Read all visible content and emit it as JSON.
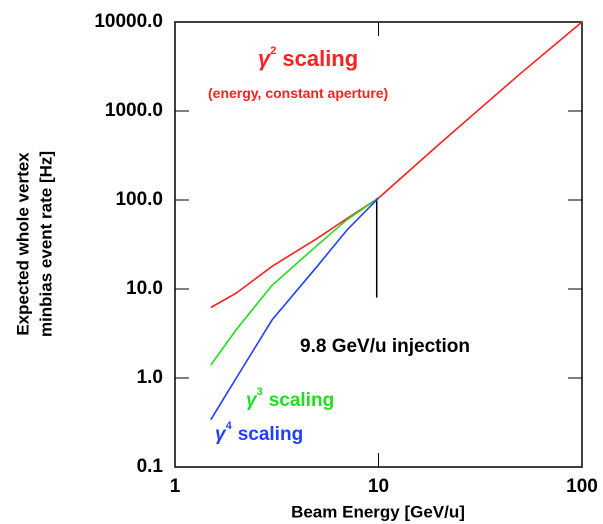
{
  "chart_data": {
    "type": "line",
    "x_label": "Beam Energy [GeV/u]",
    "y_label": [
      "Expected whole vertex",
      "minbias event rate [Hz]"
    ],
    "log_x": true,
    "log_y": true,
    "xlim": [
      1,
      100
    ],
    "xticks": [
      1,
      10,
      100
    ],
    "ylim": [
      0.1,
      10000
    ],
    "yticks": [
      {
        "value": 0.1,
        "label": "0.1"
      },
      {
        "value": 1,
        "label": "1.0"
      },
      {
        "value": 10,
        "label": "10.0"
      },
      {
        "value": 100,
        "label": "100.0"
      },
      {
        "value": 1000,
        "label": "1000.0"
      },
      {
        "value": 10000,
        "label": "10000.0"
      }
    ],
    "series": [
      {
        "color": "#ff2020",
        "x": [
          1.5,
          2,
          3,
          5,
          7,
          10,
          20,
          50,
          100
        ],
        "values": [
          6.2,
          9,
          18,
          37,
          62,
          105,
          430,
          2650,
          10000
        ]
      },
      {
        "color": "#20dd20",
        "x": [
          1.5,
          2,
          3,
          5,
          7,
          10
        ],
        "values": [
          1.4,
          3.5,
          11,
          31,
          60,
          105
        ]
      },
      {
        "color": "#2040ff",
        "x": [
          1.5,
          2,
          3,
          5,
          7,
          10
        ],
        "values": [
          0.34,
          1.0,
          4.5,
          18,
          46,
          105
        ]
      }
    ],
    "injection_line": {
      "x": 9.8,
      "y": [
        8,
        105
      ]
    },
    "annotations": [
      {
        "base": "γ",
        "sup": "2",
        "text": "scaling",
        "color": "#ff2020"
      },
      {
        "text": "(energy, constant aperture)",
        "color": "#ff2020"
      },
      {
        "text": "9.8 GeV/u injection",
        "color": "#000000"
      },
      {
        "base": "γ",
        "sup": "3",
        "text": "scaling",
        "color": "#20dd20"
      },
      {
        "base": "γ",
        "sup": "4",
        "text": "scaling",
        "color": "#2040ff"
      }
    ]
  }
}
